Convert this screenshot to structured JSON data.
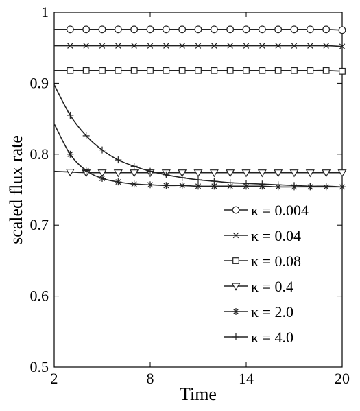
{
  "chart_data": {
    "type": "line",
    "title": "",
    "xlabel": "Time",
    "ylabel": "scaled flux rate",
    "xlim": [
      2,
      20
    ],
    "ylim": [
      0.5,
      1.0
    ],
    "xticks": [
      2,
      8,
      14,
      20
    ],
    "xtick_labels": [
      "2",
      "8",
      "14",
      "20"
    ],
    "yticks": [
      0.5,
      0.6,
      0.7,
      0.8,
      0.9,
      1.0
    ],
    "ytick_labels": [
      "0.5",
      "0.6",
      "0.7",
      "0.8",
      "0.9",
      "1"
    ],
    "grid": false,
    "legend_position": "bottom-right",
    "x": [
      2,
      3,
      4,
      5,
      6,
      7,
      8,
      9,
      10,
      11,
      12,
      13,
      14,
      15,
      16,
      17,
      18,
      19,
      20
    ],
    "series": [
      {
        "name": "κ = 0.004",
        "marker": "circle",
        "values": [
          0.976,
          0.976,
          0.976,
          0.976,
          0.976,
          0.976,
          0.976,
          0.976,
          0.976,
          0.976,
          0.976,
          0.976,
          0.976,
          0.976,
          0.976,
          0.976,
          0.976,
          0.976,
          0.975
        ]
      },
      {
        "name": "κ = 0.04",
        "marker": "x",
        "values": [
          0.953,
          0.953,
          0.953,
          0.953,
          0.953,
          0.953,
          0.953,
          0.953,
          0.953,
          0.953,
          0.953,
          0.953,
          0.953,
          0.953,
          0.953,
          0.953,
          0.953,
          0.953,
          0.952
        ]
      },
      {
        "name": "κ = 0.08",
        "marker": "square",
        "values": [
          0.918,
          0.918,
          0.918,
          0.918,
          0.918,
          0.918,
          0.918,
          0.918,
          0.918,
          0.918,
          0.918,
          0.918,
          0.918,
          0.918,
          0.918,
          0.918,
          0.918,
          0.918,
          0.917
        ]
      },
      {
        "name": "κ = 0.4",
        "marker": "triangle-down",
        "values": [
          0.776,
          0.775,
          0.774,
          0.774,
          0.774,
          0.774,
          0.774,
          0.774,
          0.774,
          0.774,
          0.774,
          0.774,
          0.774,
          0.774,
          0.774,
          0.774,
          0.774,
          0.774,
          0.774
        ]
      },
      {
        "name": "κ = 2.0",
        "marker": "asterisk",
        "values": [
          0.843,
          0.8,
          0.777,
          0.766,
          0.761,
          0.758,
          0.757,
          0.756,
          0.756,
          0.755,
          0.755,
          0.755,
          0.755,
          0.755,
          0.754,
          0.754,
          0.754,
          0.754,
          0.754
        ]
      },
      {
        "name": "κ = 4.0",
        "marker": "plus",
        "values": [
          0.898,
          0.855,
          0.826,
          0.806,
          0.792,
          0.783,
          0.776,
          0.771,
          0.767,
          0.764,
          0.762,
          0.76,
          0.759,
          0.758,
          0.757,
          0.756,
          0.755,
          0.755,
          0.754
        ]
      }
    ]
  }
}
